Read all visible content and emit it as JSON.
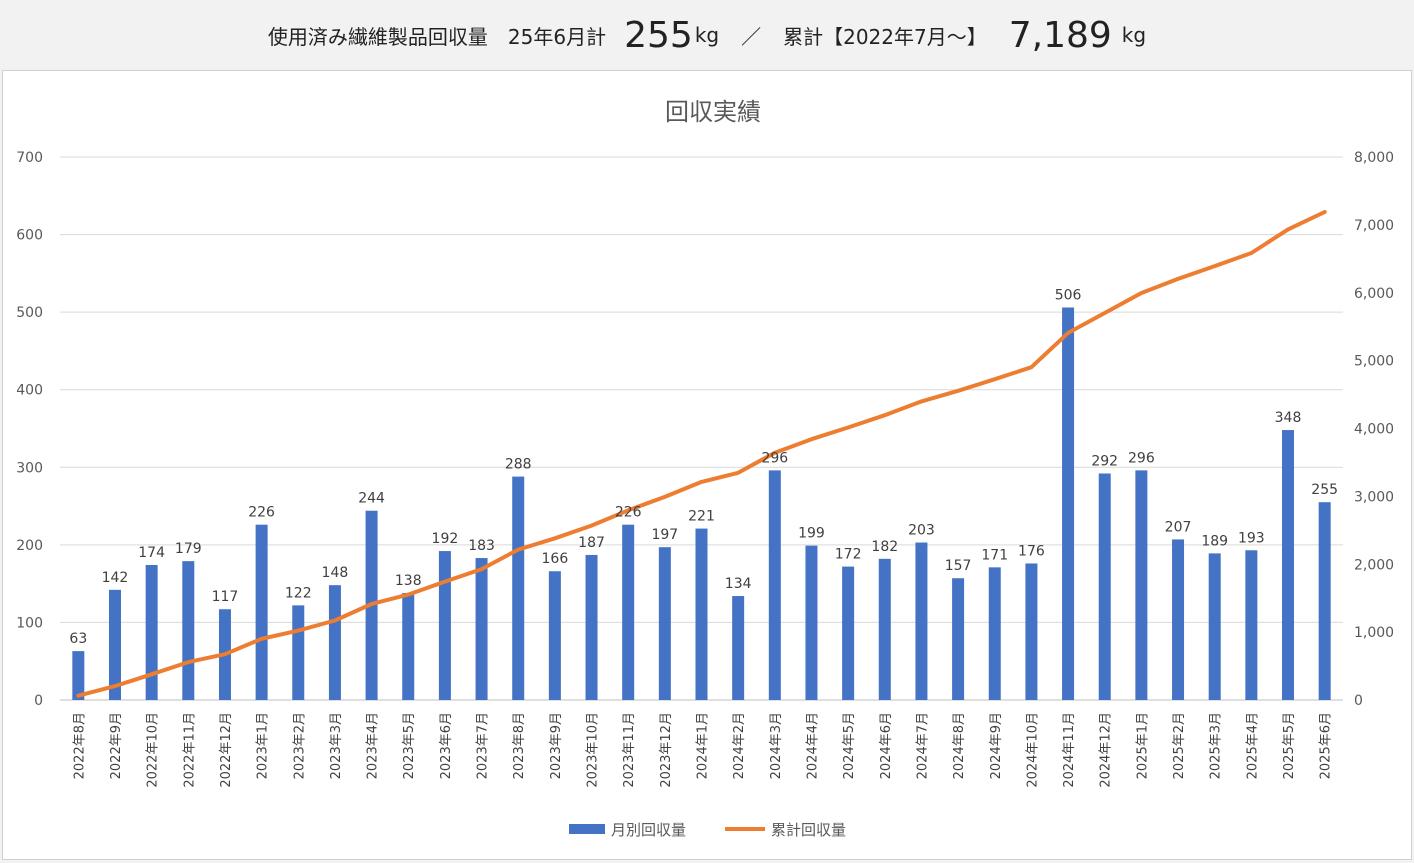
{
  "header": {
    "label1": "使用済み繊維製品回収量　25年6月計",
    "month_total": "255",
    "unit1": "kg",
    "separator": "／",
    "label2": "累計【2022年7月～】",
    "cumulative_total": "7,189",
    "unit2": "kg"
  },
  "chart_data": {
    "type": "bar+line",
    "title": "回収実績",
    "categories": [
      "2022年8月",
      "2022年9月",
      "2022年10月",
      "2022年11月",
      "2022年12月",
      "2023年1月",
      "2023年2月",
      "2023年3月",
      "2023年4月",
      "2023年5月",
      "2023年6月",
      "2023年7月",
      "2023年8月",
      "2023年9月",
      "2023年10月",
      "2023年11月",
      "2023年12月",
      "2024年1月",
      "2024年2月",
      "2024年3月",
      "2024年4月",
      "2024年5月",
      "2024年6月",
      "2024年7月",
      "2024年8月",
      "2024年9月",
      "2024年10月",
      "2024年11月",
      "2024年12月",
      "2025年1月",
      "2025年2月",
      "2025年3月",
      "2025年4月",
      "2025年5月",
      "2025年6月"
    ],
    "series": [
      {
        "name": "月別回収量",
        "type": "bar",
        "axis": "left",
        "color": "#4472c4",
        "values": [
          63,
          142,
          174,
          179,
          117,
          226,
          122,
          148,
          244,
          138,
          192,
          183,
          288,
          166,
          187,
          226,
          197,
          221,
          134,
          296,
          199,
          172,
          182,
          203,
          157,
          171,
          176,
          506,
          292,
          296,
          207,
          189,
          193,
          348,
          255
        ]
      },
      {
        "name": "累計回収量",
        "type": "line",
        "axis": "right",
        "color": "#ed7d31",
        "values": [
          63,
          205,
          379,
          558,
          675,
          901,
          1023,
          1171,
          1415,
          1553,
          1745,
          1928,
          2216,
          2382,
          2569,
          2795,
          2992,
          3213,
          3347,
          3643,
          3842,
          4014,
          4196,
          4399,
          4556,
          4727,
          4903,
          5409,
          5701,
          5997,
          6204,
          6393,
          6586,
          6934,
          7189
        ]
      }
    ],
    "y_left": {
      "min": 0,
      "max": 700,
      "ticks": [
        "0",
        "100",
        "200",
        "300",
        "400",
        "500",
        "600",
        "700"
      ]
    },
    "y_right": {
      "min": 0,
      "max": 8000,
      "ticks": [
        "0",
        "1,000",
        "2,000",
        "3,000",
        "4,000",
        "5,000",
        "6,000",
        "7,000",
        "8,000"
      ]
    },
    "grid": true,
    "legend": "bottom",
    "data_labels": true
  }
}
